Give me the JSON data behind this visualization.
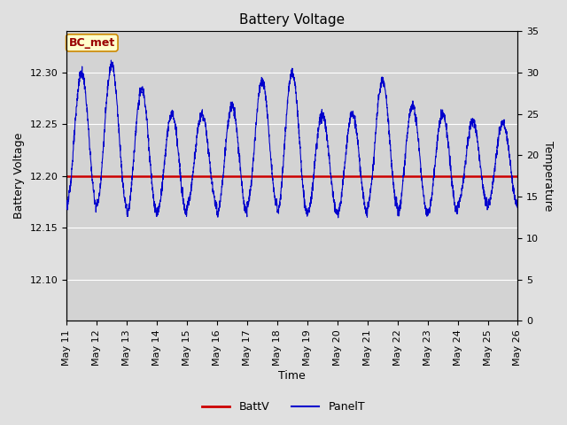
{
  "title": "Battery Voltage",
  "xlabel": "Time",
  "ylabel_left": "Battery Voltage",
  "ylabel_right": "Temperature",
  "ylim_left": [
    12.06,
    12.34
  ],
  "ylim_right": [
    0,
    35
  ],
  "batt_voltage": 12.2,
  "x_tick_labels": [
    "May 11",
    "May 12",
    "May 13",
    "May 14",
    "May 15",
    "May 16",
    "May 17",
    "May 18",
    "May 19",
    "May 20",
    "May 21",
    "May 22",
    "May 23",
    "May 24",
    "May 25",
    "May 26"
  ],
  "background_color": "#e0e0e0",
  "plot_bg_color": "#d3d3d3",
  "line_color_batt": "#cc0000",
  "line_color_panel": "#0000cc",
  "annotation_text": "BC_met",
  "annotation_bg": "#ffffcc",
  "annotation_border": "#cc8800",
  "annotation_text_color": "#990000",
  "legend_labels": [
    "BattV",
    "PanelT"
  ],
  "grid_color": "#ffffff",
  "title_fontsize": 11,
  "axis_fontsize": 8,
  "label_fontsize": 9
}
